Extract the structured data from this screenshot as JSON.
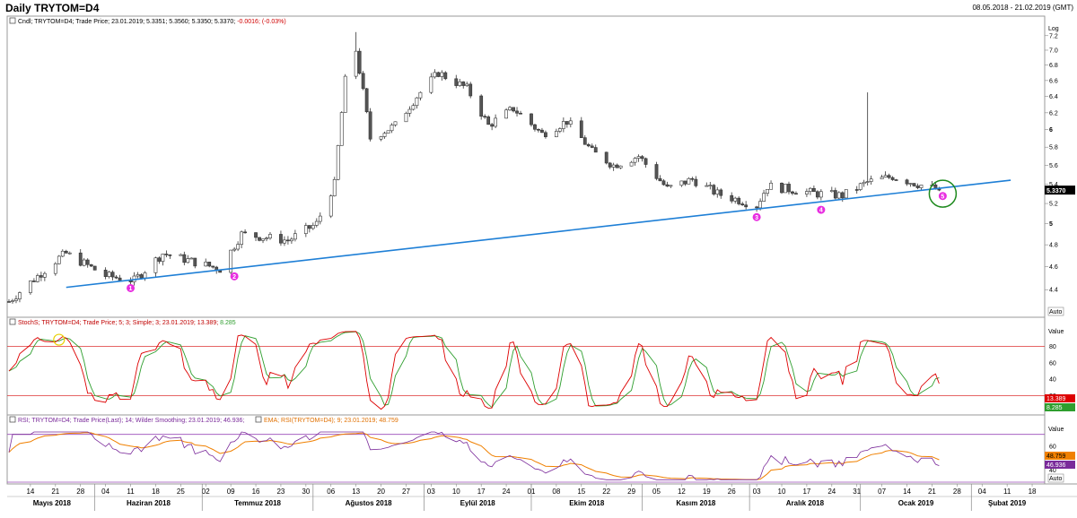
{
  "header": {
    "title": "Daily TRYTOM=D4",
    "date_range": "08.05.2018 - 21.02.2019 (GMT)"
  },
  "price_panel": {
    "legend": "Cndl; TRYTOM=D4; Trade Price; 23.01.2019; 5.3351; 5.3560; 5.3350; 5.3370;",
    "legend_change": "-0.0016; (-0.03%)",
    "scale_label": "Log",
    "last_value": "5.3370",
    "auto_label": "Auto",
    "markers": [
      "1",
      "2",
      "3",
      "4",
      "5"
    ]
  },
  "stoch_panel": {
    "legend": "StochS; TRYTOM=D4; Trade Price; 5; 3; Simple; 3; 23.01.2019; 13.389;",
    "legend_val": "8.285",
    "scale_label": "Value",
    "k_value": "13.389",
    "d_value": "8.285",
    "auto_label": "Auto",
    "k_color": "#dd0000",
    "d_color": "#2e9e2e"
  },
  "rsi_panel": {
    "legend": "RSI; TRYTOM=D4; Trade Price(Last); 14; Wilder Smoothing; 23.01.2019; 46.936;",
    "legend2": "EMA; RSI(TRYTOM=D4); 9; 23.01.2019; 48.759",
    "scale_label": "Value",
    "ema_value": "48.759",
    "rsi_value": "46.936",
    "auto_label": "Auto",
    "rsi_color": "#7a2a9a",
    "ema_color": "#f08000"
  },
  "x_axis": {
    "days": [
      "14",
      "21",
      "28",
      "04",
      "11",
      "18",
      "25",
      "02",
      "09",
      "16",
      "23",
      "30",
      "06",
      "13",
      "20",
      "27",
      "03",
      "10",
      "17",
      "24",
      "01",
      "08",
      "15",
      "22",
      "29",
      "05",
      "12",
      "19",
      "26",
      "03",
      "10",
      "17",
      "24",
      "31",
      "07",
      "14",
      "21",
      "28",
      "04",
      "11",
      "18"
    ],
    "months": [
      "Mayıs 2018",
      "Haziran 2018",
      "Temmuz 2018",
      "Ağustos 2018",
      "Eylül 2018",
      "Ekim 2018",
      "Kasım 2018",
      "Aralık 2018",
      "Ocak 2019",
      "Şubat 2019"
    ]
  },
  "chart_data": [
    {
      "type": "candlestick",
      "title": "Daily TRYTOM=D4",
      "scale": "log",
      "ylim": [
        4.2,
        7.4
      ],
      "y_ticks": [
        4.4,
        4.6,
        4.8,
        5,
        5.2,
        5.4,
        5.6,
        5.8,
        6,
        6.2,
        6.4,
        6.6,
        6.8,
        7,
        7.2
      ],
      "series_close_anchors": [
        {
          "x": "2018-05-08",
          "y": 4.3
        },
        {
          "x": "2018-05-22",
          "y": 4.68
        },
        {
          "x": "2018-05-24",
          "y": 4.72
        },
        {
          "x": "2018-06-04",
          "y": 4.52
        },
        {
          "x": "2018-06-12",
          "y": 4.48
        },
        {
          "x": "2018-06-20",
          "y": 4.72
        },
        {
          "x": "2018-06-28",
          "y": 4.65
        },
        {
          "x": "2018-07-06",
          "y": 4.58
        },
        {
          "x": "2018-07-12",
          "y": 4.9
        },
        {
          "x": "2018-07-25",
          "y": 4.84
        },
        {
          "x": "2018-08-02",
          "y": 5.0
        },
        {
          "x": "2018-08-07",
          "y": 5.4
        },
        {
          "x": "2018-08-10",
          "y": 6.6
        },
        {
          "x": "2018-08-13",
          "y": 7.0
        },
        {
          "x": "2018-08-17",
          "y": 5.9
        },
        {
          "x": "2018-08-24",
          "y": 6.05
        },
        {
          "x": "2018-08-30",
          "y": 6.4
        },
        {
          "x": "2018-09-05",
          "y": 6.7
        },
        {
          "x": "2018-09-13",
          "y": 6.5
        },
        {
          "x": "2018-09-19",
          "y": 6.05
        },
        {
          "x": "2018-09-26",
          "y": 6.25
        },
        {
          "x": "2018-10-04",
          "y": 5.95
        },
        {
          "x": "2018-10-11",
          "y": 6.1
        },
        {
          "x": "2018-10-18",
          "y": 5.75
        },
        {
          "x": "2018-10-24",
          "y": 5.6
        },
        {
          "x": "2018-10-31",
          "y": 5.7
        },
        {
          "x": "2018-11-08",
          "y": 5.35
        },
        {
          "x": "2018-11-15",
          "y": 5.45
        },
        {
          "x": "2018-11-22",
          "y": 5.3
        },
        {
          "x": "2018-12-03",
          "y": 5.18
        },
        {
          "x": "2018-12-06",
          "y": 5.38
        },
        {
          "x": "2018-12-20",
          "y": 5.3
        },
        {
          "x": "2018-12-27",
          "y": 5.28
        },
        {
          "x": "2019-01-03",
          "y": 5.42
        },
        {
          "x": "2019-01-10",
          "y": 5.48
        },
        {
          "x": "2019-01-17",
          "y": 5.4
        },
        {
          "x": "2019-01-23",
          "y": 5.337
        }
      ],
      "spike_high": {
        "x": "2019-01-03",
        "y": 6.45
      },
      "trendline": [
        {
          "x": "2018-05-24",
          "y": 4.42
        },
        {
          "x": "2019-02-12",
          "y": 5.44
        }
      ]
    },
    {
      "type": "line",
      "title": "StochS",
      "ylim": [
        0,
        100
      ],
      "y_ticks": [
        20,
        40,
        60,
        80
      ],
      "reference_lines": [
        20,
        80
      ],
      "series": [
        {
          "name": "StochS",
          "last": 13.389
        },
        {
          "name": "signal",
          "last": 8.285
        }
      ]
    },
    {
      "type": "line",
      "title": "RSI",
      "ylim": [
        30,
        75
      ],
      "y_ticks": [
        40,
        60
      ],
      "reference_lines": [
        30,
        70
      ],
      "series": [
        {
          "name": "RSI",
          "last": 46.936
        },
        {
          "name": "EMA",
          "last": 48.759
        }
      ]
    }
  ]
}
